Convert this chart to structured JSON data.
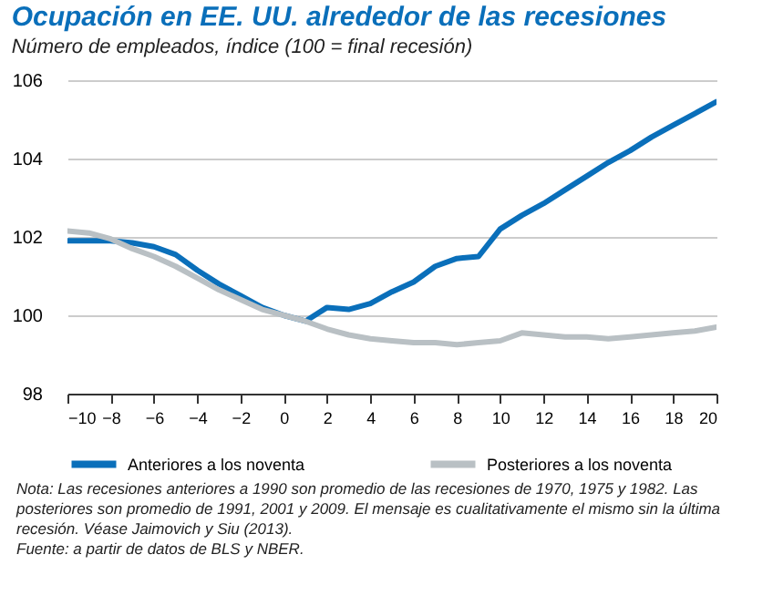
{
  "chart_data": {
    "type": "line",
    "title": "Ocupación en EE. UU.  alrededor de las recesiones",
    "subtitle": "Número de empleados, índice (100 = final recesión)",
    "x": [
      -10,
      -9,
      -8,
      -7,
      -6,
      -5,
      -4,
      -3,
      -2,
      -1,
      0,
      1,
      2,
      3,
      4,
      5,
      6,
      7,
      8,
      9,
      10,
      11,
      12,
      13,
      14,
      15,
      16,
      17,
      18,
      19,
      20
    ],
    "series": [
      {
        "name": "Anteriores a los noventa",
        "color": "#0a6fba",
        "values": [
          101.9,
          101.9,
          101.9,
          101.85,
          101.75,
          101.55,
          101.15,
          100.8,
          100.5,
          100.2,
          100,
          99.85,
          100.2,
          100.15,
          100.3,
          100.6,
          100.85,
          101.25,
          101.45,
          101.5,
          102.2,
          102.55,
          102.85,
          103.2,
          103.55,
          103.9,
          104.2,
          104.55,
          104.85,
          105.15,
          105.45
        ]
      },
      {
        "name": "Posteriores a los noventa",
        "color": "#b9c0c4",
        "values": [
          102.15,
          102.1,
          101.95,
          101.7,
          101.5,
          101.25,
          100.95,
          100.65,
          100.4,
          100.15,
          100,
          99.85,
          99.65,
          99.5,
          99.4,
          99.35,
          99.3,
          99.3,
          99.25,
          99.3,
          99.35,
          99.55,
          99.5,
          99.45,
          99.45,
          99.4,
          99.45,
          99.5,
          99.55,
          99.6,
          99.7
        ]
      }
    ],
    "xlim": [
      -10,
      20
    ],
    "xticks": [
      -10,
      -8,
      -6,
      -4,
      -2,
      0,
      2,
      4,
      6,
      8,
      10,
      12,
      14,
      16,
      18,
      20
    ],
    "ylim": [
      98,
      106
    ],
    "yticks": [
      98,
      100,
      102,
      104,
      106
    ],
    "grid": "y",
    "legend": "bottom",
    "line_style": "solid",
    "marker": "none",
    "annotations": [
      "Nota: Las recesiones anteriores a 1990 son promedio de las recesiones de 1970, 1975 y 1982. Las posteriores son promedio de 1991, 2001 y 2009. El mensaje es cualitativamente el mismo sin la última recesión. Véase Jaimovich y Siu (2013).",
      "Fuente: a partir de datos de BLS y NBER."
    ]
  }
}
